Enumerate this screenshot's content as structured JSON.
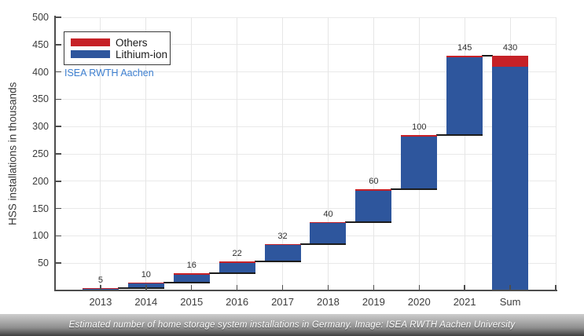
{
  "chart_data": {
    "type": "bar",
    "subtype": "waterfall-stacked",
    "title": "",
    "ylabel": "HSS installations in thousands",
    "xlabel": "",
    "ylim": [
      0,
      500
    ],
    "ytick_step": 50,
    "grid": true,
    "legend_position": "top-left",
    "categories": [
      "2013",
      "2014",
      "2015",
      "2016",
      "2017",
      "2018",
      "2019",
      "2020",
      "2021",
      "Sum"
    ],
    "bar_totals": [
      5,
      10,
      16,
      22,
      32,
      40,
      60,
      100,
      145,
      430
    ],
    "bar_labels": [
      "5",
      "10",
      "16",
      "22",
      "32",
      "40",
      "60",
      "100",
      "145",
      "430"
    ],
    "series": [
      {
        "name": "Others",
        "color": "#c62127",
        "values": [
          2,
          2,
          2,
          2,
          2,
          2,
          2,
          3,
          3,
          20
        ]
      },
      {
        "name": "Lithium-ion",
        "color": "#2e569d",
        "values": [
          3,
          8,
          14,
          20,
          30,
          38,
          58,
          97,
          142,
          410
        ]
      }
    ],
    "baseline_note": "waterfall: each year floats at cumulative of prior years; Sum bar starts at 0",
    "annotation": "ISEA RWTH Aachen",
    "annotation_color": "#3d7fd0",
    "axis_color": "#4d4d4d",
    "connector_color": "#1c1c1c"
  },
  "caption": {
    "text": "Estimated number of home storage system installations in Germany. Image: ISEA RWTH Aachen University"
  }
}
